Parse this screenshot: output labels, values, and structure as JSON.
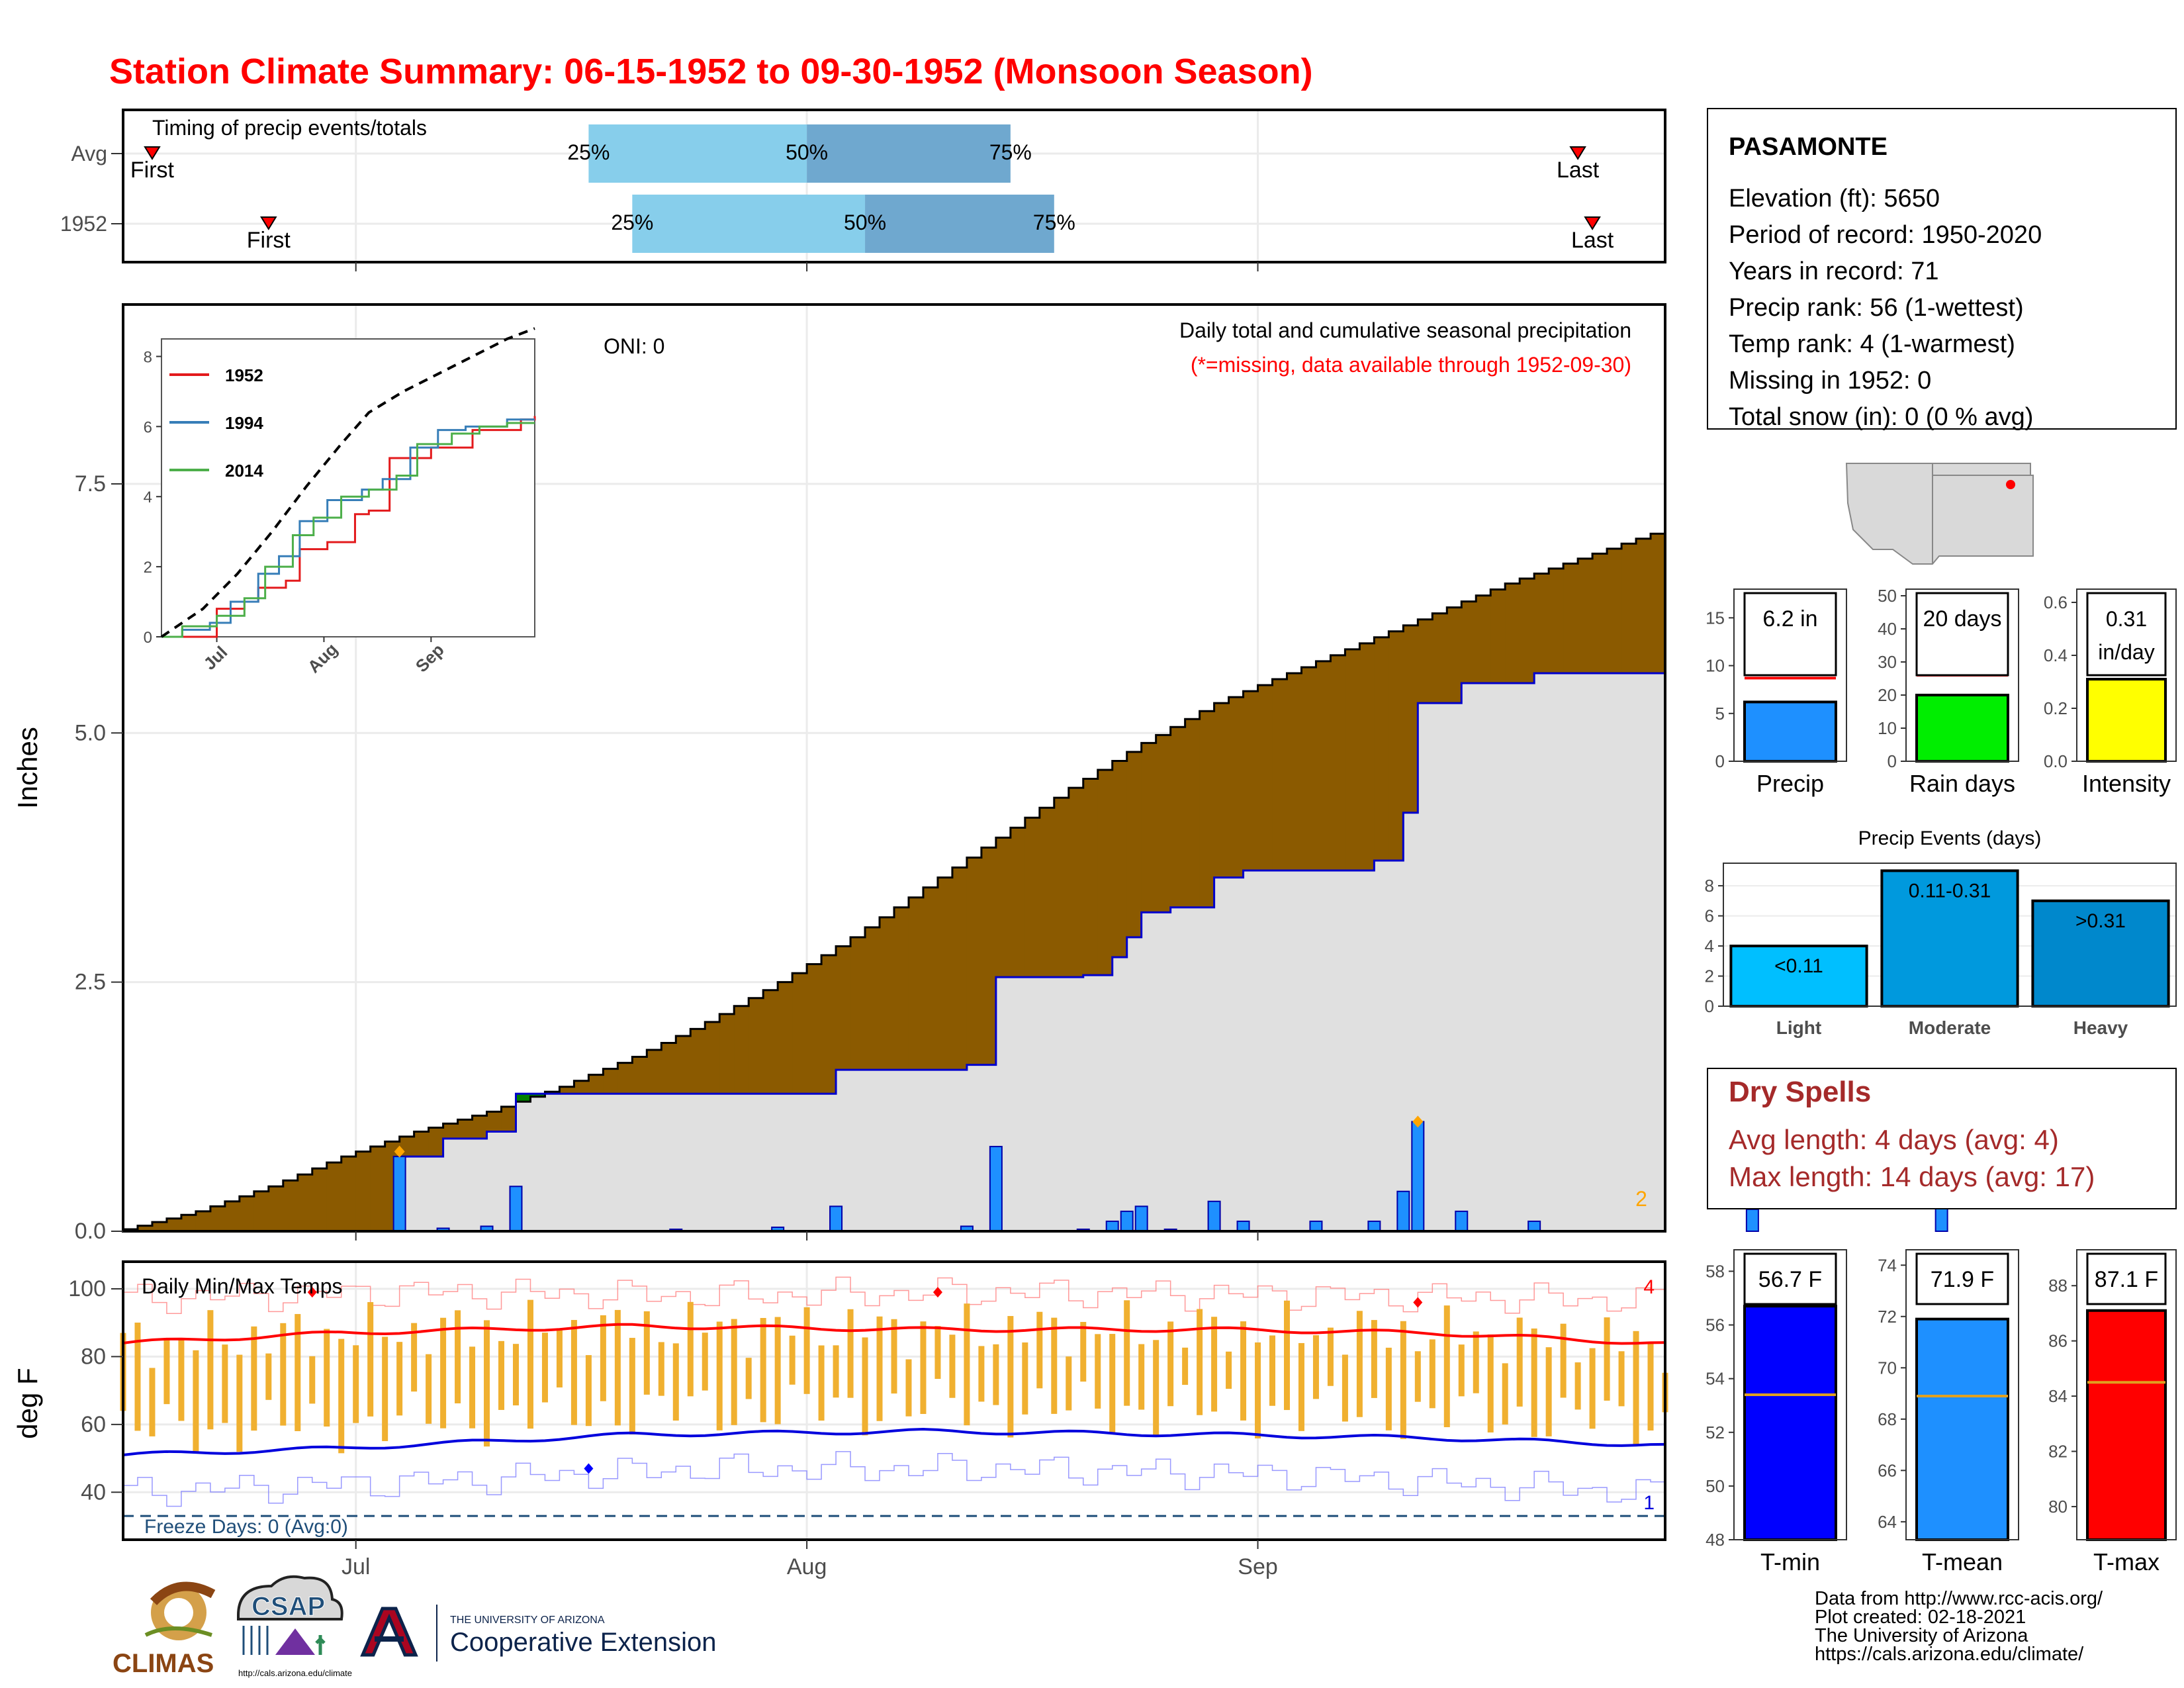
{
  "title": "Station Climate Summary: 06-15-1952 to 09-30-1952 (Monsoon Season)",
  "colors": {
    "title": "#ff0000",
    "above": "#8b5a00",
    "below": "#00ff00",
    "dry_spell": "#a52a2a",
    "bar_blue": "#1e90ff",
    "temp_bar": "#f0b030"
  },
  "station": {
    "name": "PASAMONTE",
    "lines": [
      "Elevation (ft): 5650",
      "Period of record: 1950-2020",
      "Years in record: 71",
      "Precip rank: 56 (1-wettest)",
      "Temp rank: 4 (1-warmest)",
      "Missing in 1952: 0",
      "Total snow (in): 0 (0 % avg)"
    ]
  },
  "dry_spells": {
    "title": "Dry Spells",
    "avg_length": "Avg length: 4 days (avg: 4)",
    "max_length": "Max length: 14 days (avg: 17)"
  },
  "attribution": [
    "Data from http://www.rcc-acis.org/",
    "Plot created: 02-18-2021",
    "The University of Arizona",
    "https://cals.arizona.edu/climate/"
  ],
  "logos": {
    "climas": "CLIMAS",
    "csap": "CSAP",
    "csap_url": "http://cals.arizona.edu/climate",
    "ua_small": "THE UNIVERSITY OF ARIZONA",
    "ua_big": "Cooperative Extension"
  },
  "chart_data": [
    {
      "type": "timeline",
      "id": "timing",
      "title": "Timing of precip events/totals",
      "rows": [
        {
          "label": "Avg",
          "first": "First",
          "last": "Last",
          "p25": "25%",
          "p50": "50%",
          "p75": "75%",
          "first_date": "1952-06-17",
          "last_date": "1952-09-23",
          "p25_date": "1952-07-17",
          "p50_date": "1952-08-01",
          "p75_date": "1952-08-15"
        },
        {
          "label": "1952",
          "first": "First",
          "last": "Last",
          "p25": "25%",
          "p50": "50%",
          "p75": "75%",
          "first_date": "1952-06-25",
          "last_date": "1952-09-24",
          "p25_date": "1952-07-20",
          "p50_date": "1952-08-05",
          "p75_date": "1952-08-18"
        }
      ]
    },
    {
      "type": "area",
      "id": "cumulative-precip",
      "title": "Daily total and cumulative seasonal precipitation",
      "subtitle": "(*=missing, data available through 1952-09-30)",
      "ylabel": "Inches",
      "annotation": "ONI: 0",
      "corner_count": "2",
      "ylim": [
        0,
        9.3
      ],
      "yticks": [
        0.0,
        2.5,
        5.0,
        7.5
      ],
      "ytick_labels": [
        "0.0",
        "2.5",
        "5.0",
        "7.5"
      ],
      "x_start": "06-15",
      "x_end": "09-30",
      "x_ticks": [
        "Jul",
        "Aug",
        "Sep"
      ],
      "x_tick_dates": [
        "07-01",
        "08-01",
        "09-01"
      ],
      "avg_cumulative_points": [
        [
          0,
          0.02
        ],
        [
          5,
          0.2
        ],
        [
          10,
          0.45
        ],
        [
          15,
          0.75
        ],
        [
          20,
          1.0
        ],
        [
          25,
          1.2
        ],
        [
          30,
          1.45
        ],
        [
          35,
          1.75
        ],
        [
          40,
          2.1
        ],
        [
          45,
          2.5
        ],
        [
          50,
          2.95
        ],
        [
          55,
          3.45
        ],
        [
          60,
          3.95
        ],
        [
          65,
          4.45
        ],
        [
          70,
          4.9
        ],
        [
          75,
          5.3
        ],
        [
          80,
          5.6
        ],
        [
          85,
          5.9
        ],
        [
          90,
          6.2
        ],
        [
          95,
          6.5
        ],
        [
          100,
          6.75
        ],
        [
          105,
          7.0
        ],
        [
          110,
          7.3
        ],
        [
          115,
          7.65
        ],
        [
          120,
          7.95
        ],
        [
          125,
          8.25
        ],
        [
          130,
          8.45
        ],
        [
          135,
          8.55
        ],
        [
          140,
          8.6
        ],
        [
          142,
          8.6
        ]
      ],
      "daily_precip": [
        [
          0,
          0
        ],
        [
          19,
          0.75
        ],
        [
          22,
          0.03
        ],
        [
          25,
          0.05
        ],
        [
          27,
          0.45
        ],
        [
          38,
          0.02
        ],
        [
          45,
          0.04
        ],
        [
          49,
          0.25
        ],
        [
          58,
          0.05
        ],
        [
          60,
          0.85
        ],
        [
          66,
          0.02
        ],
        [
          68,
          0.1
        ],
        [
          69,
          0.2
        ],
        [
          70,
          0.25
        ],
        [
          72,
          0.02
        ],
        [
          75,
          0.3
        ],
        [
          77,
          0.1
        ],
        [
          82,
          0.1
        ],
        [
          86,
          0.1
        ],
        [
          88,
          0.4
        ],
        [
          89,
          1.1
        ],
        [
          92,
          0.2
        ],
        [
          97,
          0.1
        ],
        [
          112,
          0.22
        ],
        [
          125,
          0.35
        ]
      ],
      "cumulative_1952": [
        [
          0,
          0
        ],
        [
          19,
          0.75
        ],
        [
          22,
          0.93
        ],
        [
          25,
          1.0
        ],
        [
          27,
          1.38
        ],
        [
          38,
          1.38
        ],
        [
          45,
          1.38
        ],
        [
          49,
          1.62
        ],
        [
          58,
          1.67
        ],
        [
          60,
          2.55
        ],
        [
          66,
          2.57
        ],
        [
          68,
          2.75
        ],
        [
          69,
          2.95
        ],
        [
          70,
          3.2
        ],
        [
          72,
          3.25
        ],
        [
          75,
          3.55
        ],
        [
          77,
          3.62
        ],
        [
          82,
          3.62
        ],
        [
          86,
          3.72
        ],
        [
          88,
          4.2
        ],
        [
          89,
          5.3
        ],
        [
          92,
          5.5
        ],
        [
          97,
          5.6
        ],
        [
          112,
          5.85
        ],
        [
          125,
          6.2
        ],
        [
          142,
          6.2
        ]
      ],
      "markers": [
        {
          "day": 19,
          "value": 0.8,
          "color": "#ffa500"
        },
        {
          "day": 89,
          "value": 1.1,
          "color": "#ffa500"
        }
      ]
    },
    {
      "type": "line",
      "id": "inset-cumulative",
      "series": [
        {
          "name": "1952",
          "color": "#e31a1c",
          "values": [
            [
              0,
              0
            ],
            [
              8,
              0
            ],
            [
              14,
              0
            ],
            [
              16,
              0.8
            ],
            [
              24,
              1.0
            ],
            [
              28,
              1.4
            ],
            [
              36,
              1.6
            ],
            [
              40,
              2.5
            ],
            [
              48,
              2.7
            ],
            [
              56,
              3.5
            ],
            [
              60,
              3.6
            ],
            [
              66,
              5.1
            ],
            [
              78,
              5.4
            ],
            [
              90,
              5.9
            ],
            [
              104,
              6.2
            ],
            [
              108,
              6.3
            ]
          ]
        },
        {
          "name": "1994",
          "color": "#377eb8",
          "values": [
            [
              0,
              0
            ],
            [
              6,
              0.2
            ],
            [
              14,
              0.4
            ],
            [
              20,
              1.0
            ],
            [
              28,
              1.8
            ],
            [
              34,
              2.3
            ],
            [
              40,
              3.3
            ],
            [
              48,
              3.9
            ],
            [
              58,
              4.2
            ],
            [
              64,
              4.5
            ],
            [
              72,
              5.4
            ],
            [
              80,
              5.9
            ],
            [
              88,
              6.0
            ],
            [
              100,
              6.2
            ],
            [
              108,
              6.2
            ]
          ]
        },
        {
          "name": "2014",
          "color": "#4daf4a",
          "values": [
            [
              0,
              0
            ],
            [
              6,
              0.3
            ],
            [
              16,
              0.6
            ],
            [
              24,
              1.1
            ],
            [
              30,
              2.0
            ],
            [
              38,
              2.9
            ],
            [
              44,
              3.4
            ],
            [
              52,
              4.0
            ],
            [
              60,
              4.2
            ],
            [
              68,
              4.6
            ],
            [
              74,
              5.5
            ],
            [
              84,
              5.8
            ],
            [
              92,
              6.0
            ],
            [
              100,
              6.1
            ],
            [
              108,
              6.1
            ]
          ]
        },
        {
          "name": "",
          "color": "#000000",
          "dash": true,
          "values": [
            [
              0,
              0
            ],
            [
              12,
              0.8
            ],
            [
              22,
              1.8
            ],
            [
              32,
              3.0
            ],
            [
              42,
              4.3
            ],
            [
              52,
              5.5
            ],
            [
              60,
              6.4
            ],
            [
              70,
              7.0
            ],
            [
              80,
              7.5
            ],
            [
              90,
              8.0
            ],
            [
              100,
              8.5
            ],
            [
              108,
              8.8
            ]
          ]
        }
      ],
      "ylim": [
        0,
        8.5
      ],
      "yticks": [
        "0",
        "2",
        "4",
        "6",
        "8"
      ],
      "x_ticks": [
        "Jul",
        "Aug",
        "Sep"
      ],
      "x_tick_days": [
        16,
        47,
        78
      ]
    },
    {
      "type": "line",
      "id": "temps",
      "title": "Daily Min/Max Temps",
      "ylabel": "deg F",
      "ylim": [
        26,
        108
      ],
      "yticks": [
        40,
        60,
        80,
        100
      ],
      "freeze_line": 33,
      "freeze_label": "Freeze Days: 0 (Avg:0)",
      "count_max": "4",
      "count_min": "1",
      "x_ticks": [
        "Jul",
        "Aug",
        "Sep"
      ],
      "avg_max_points": [
        [
          0,
          84
        ],
        [
          15,
          87
        ],
        [
          35,
          89
        ],
        [
          55,
          88
        ],
        [
          75,
          88
        ],
        [
          90,
          87
        ],
        [
          105,
          84
        ],
        [
          120,
          80
        ],
        [
          135,
          77
        ],
        [
          142,
          75
        ]
      ],
      "avg_min_points": [
        [
          0,
          51
        ],
        [
          15,
          53
        ],
        [
          35,
          57
        ],
        [
          55,
          58
        ],
        [
          75,
          57
        ],
        [
          90,
          56
        ],
        [
          105,
          54
        ],
        [
          120,
          50
        ],
        [
          135,
          45
        ],
        [
          142,
          43
        ]
      ],
      "rec_max_points": [
        [
          0,
          97
        ],
        [
          20,
          99
        ],
        [
          40,
          98
        ],
        [
          60,
          99
        ],
        [
          80,
          98
        ],
        [
          100,
          97
        ],
        [
          120,
          94
        ],
        [
          142,
          92
        ]
      ],
      "rec_min_points": [
        [
          0,
          40
        ],
        [
          20,
          43
        ],
        [
          40,
          47
        ],
        [
          60,
          47
        ],
        [
          80,
          45
        ],
        [
          100,
          41
        ],
        [
          120,
          35
        ],
        [
          142,
          29
        ]
      ],
      "daily_minmax_seed": {
        "max_base": 88,
        "min_base": 60
      }
    },
    {
      "type": "bar",
      "id": "season-precip",
      "categories": [
        "Precip"
      ],
      "values": [
        6.2
      ],
      "avg": 8.7,
      "label": "6.2 in",
      "ylim": [
        0,
        18
      ],
      "yticks": [
        "0",
        "5",
        "10",
        "15"
      ],
      "color": "#1e90ff"
    },
    {
      "type": "bar",
      "id": "rain-days",
      "categories": [
        "Rain days"
      ],
      "values": [
        20
      ],
      "avg": 26,
      "label": "20 days",
      "ylim": [
        0,
        52
      ],
      "yticks": [
        "0",
        "10",
        "20",
        "30",
        "40",
        "50"
      ],
      "color": "#00ee00"
    },
    {
      "type": "bar",
      "id": "intensity",
      "categories": [
        "Intensity"
      ],
      "values": [
        0.31
      ],
      "avg": 0.34,
      "label": "0.31\nin/day",
      "label_line1": "0.31",
      "label_line2": "in/day",
      "ylim": [
        0,
        0.65
      ],
      "yticks": [
        "0.0",
        "0.2",
        "0.4",
        "0.6"
      ],
      "color": "#ffff00"
    },
    {
      "type": "bar",
      "id": "precip-events",
      "title": "Precip Events (days)",
      "categories": [
        "Light",
        "Moderate",
        "Heavy"
      ],
      "values": [
        4,
        9,
        7
      ],
      "bar_labels": [
        "<0.11",
        "0.11-0.31",
        ">0.31"
      ],
      "ylim": [
        0,
        9.5
      ],
      "yticks": [
        "0",
        "2",
        "4",
        "6",
        "8"
      ],
      "colors": [
        "#00bfff",
        "#0099dd",
        "#0088cc"
      ]
    },
    {
      "type": "bar",
      "id": "t-min",
      "categories": [
        "T-min"
      ],
      "values": [
        56.7
      ],
      "avg": 53.4,
      "label": "56.7 F",
      "ylim": [
        48,
        58.8
      ],
      "yticks": [
        "48",
        "50",
        "52",
        "54",
        "56",
        "58"
      ],
      "color": "#0000ff"
    },
    {
      "type": "bar",
      "id": "t-mean",
      "categories": [
        "T-mean"
      ],
      "values": [
        71.9
      ],
      "avg": 68.9,
      "label": "71.9 F",
      "ylim": [
        63.3,
        74.6
      ],
      "yticks": [
        "64",
        "66",
        "68",
        "70",
        "72",
        "74"
      ],
      "color": "#1e90ff"
    },
    {
      "type": "bar",
      "id": "t-max",
      "categories": [
        "T-max"
      ],
      "values": [
        87.1
      ],
      "avg": 84.5,
      "label": "87.1 F",
      "ylim": [
        78.8,
        89.3
      ],
      "yticks": [
        "80",
        "82",
        "84",
        "86",
        "88"
      ],
      "color": "#ff0000"
    }
  ]
}
